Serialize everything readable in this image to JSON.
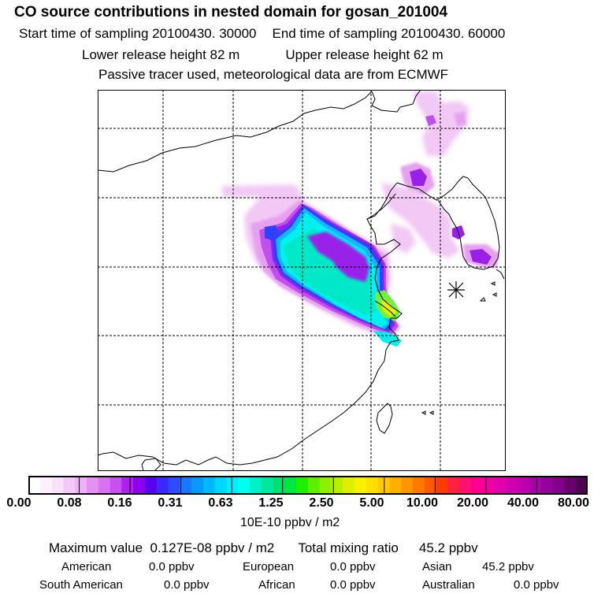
{
  "header": {
    "title": "CO  source contributions in nested domain for gosan_201004",
    "start_label": "Start time of sampling 20100430. 30000",
    "end_label": "End time of sampling 20100430. 60000",
    "lower_label": "Lower release height   82 m",
    "upper_label": "Upper release height   62 m",
    "note": "Passive tracer used, meteorological data are from ECMWF"
  },
  "colorbar": {
    "ticks": [
      "0.00",
      "0.08",
      "0.16",
      "0.31",
      "0.63",
      "1.25",
      "2.50",
      "5.00",
      "10.00",
      "20.00",
      "40.00",
      "80.00"
    ],
    "units": "10E-10 ppbv / m2",
    "colors": [
      "#ffffff",
      "#fff0ff",
      "#fae0fa",
      "#f5c8fa",
      "#eeb0f8",
      "#e690f5",
      "#d870f2",
      "#c850f0",
      "#b020ee",
      "#8e00ee",
      "#5a00f0",
      "#3c28ff",
      "#2c4cff",
      "#1878ff",
      "#0c96ff",
      "#00b8ff",
      "#00d6ff",
      "#00eeff",
      "#00ffee",
      "#00f0c8",
      "#00e8a0",
      "#00e070",
      "#00e840",
      "#20f000",
      "#5cf000",
      "#8ef000",
      "#b8f000",
      "#dcf000",
      "#f8f000",
      "#ffe000",
      "#ffc800",
      "#ffb000",
      "#ff9600",
      "#ff7800",
      "#ff5a00",
      "#ff3c00",
      "#ff2040",
      "#ff1070",
      "#ff0090",
      "#f000a0",
      "#e400a8",
      "#d000b0",
      "#bc00b0",
      "#a800a8",
      "#94009c",
      "#80008c",
      "#6a0070",
      "#500050"
    ]
  },
  "summary": {
    "max_label": "Maximum value",
    "max_value": "0.127E-08 ppbv / m2",
    "total_label": "Total mixing ratio",
    "total_value": "45.2 ppbv"
  },
  "regions": [
    {
      "name": "American",
      "value": "0.0 ppbv"
    },
    {
      "name": "European",
      "value": "0.0 ppbv"
    },
    {
      "name": "Asian",
      "value": "45.2 ppbv"
    },
    {
      "name": "South American",
      "value": "0.0 ppbv"
    },
    {
      "name": "African",
      "value": "0.0 ppbv"
    },
    {
      "name": "Australian",
      "value": "0.0 ppbv"
    }
  ],
  "map_colors": {
    "lavender": "#f2c8f5",
    "pink": "#e6a0f0",
    "violet": "#c050ec",
    "purple": "#9a20e8",
    "blue": "#3040ff",
    "skyblue": "#18b4ff",
    "cyan": "#00f0f0",
    "aqua": "#00e8c8",
    "green": "#70f040",
    "yellow": "#e8f000"
  }
}
